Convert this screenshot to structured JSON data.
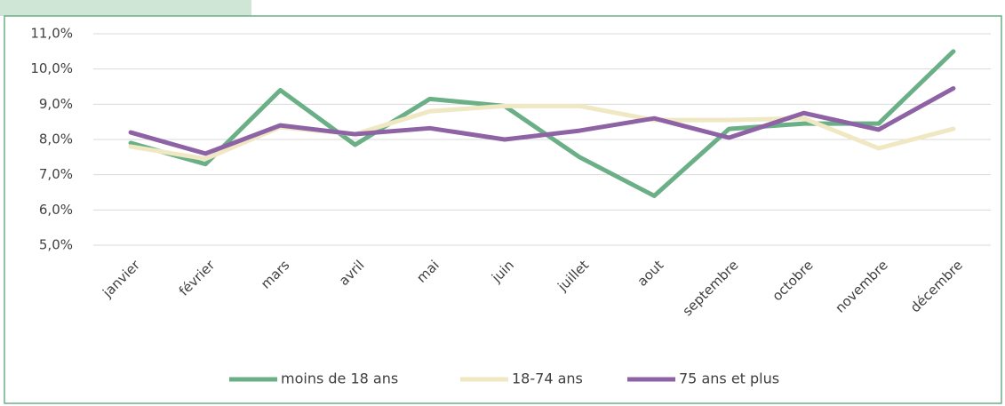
{
  "chart_data": {
    "type": "line",
    "categories": [
      "janvier",
      "février",
      "mars",
      "avril",
      "mai",
      "juin",
      "juillet",
      "aout",
      "septembre",
      "octobre",
      "novembre",
      "décembre"
    ],
    "series": [
      {
        "name": "moins de 18 ans",
        "color": "#6aaf86",
        "values": [
          7.9,
          7.3,
          9.4,
          7.85,
          9.15,
          8.95,
          7.5,
          6.4,
          8.3,
          8.45,
          8.45,
          10.5
        ]
      },
      {
        "name": "18-74 ans",
        "color": "#efe8c3",
        "values": [
          7.8,
          7.45,
          8.35,
          8.15,
          8.8,
          8.95,
          8.95,
          8.55,
          8.55,
          8.6,
          7.75,
          8.3
        ]
      },
      {
        "name": "75 ans et plus",
        "color": "#8e63a5",
        "values": [
          8.2,
          7.6,
          8.4,
          8.15,
          8.32,
          8.0,
          8.25,
          8.6,
          8.05,
          8.75,
          8.28,
          9.45
        ]
      }
    ],
    "ylim": [
      5,
      11
    ],
    "yticks": [
      {
        "value": 5,
        "label": "5,0%"
      },
      {
        "value": 6,
        "label": "6,0%"
      },
      {
        "value": 7,
        "label": "7,0%"
      },
      {
        "value": 8,
        "label": "8,0%"
      },
      {
        "value": 9,
        "label": "9,0%"
      },
      {
        "value": 10,
        "label": "10,0%"
      },
      {
        "value": 11,
        "label": "11,0%"
      }
    ],
    "grid": true,
    "legend": "bottom"
  }
}
